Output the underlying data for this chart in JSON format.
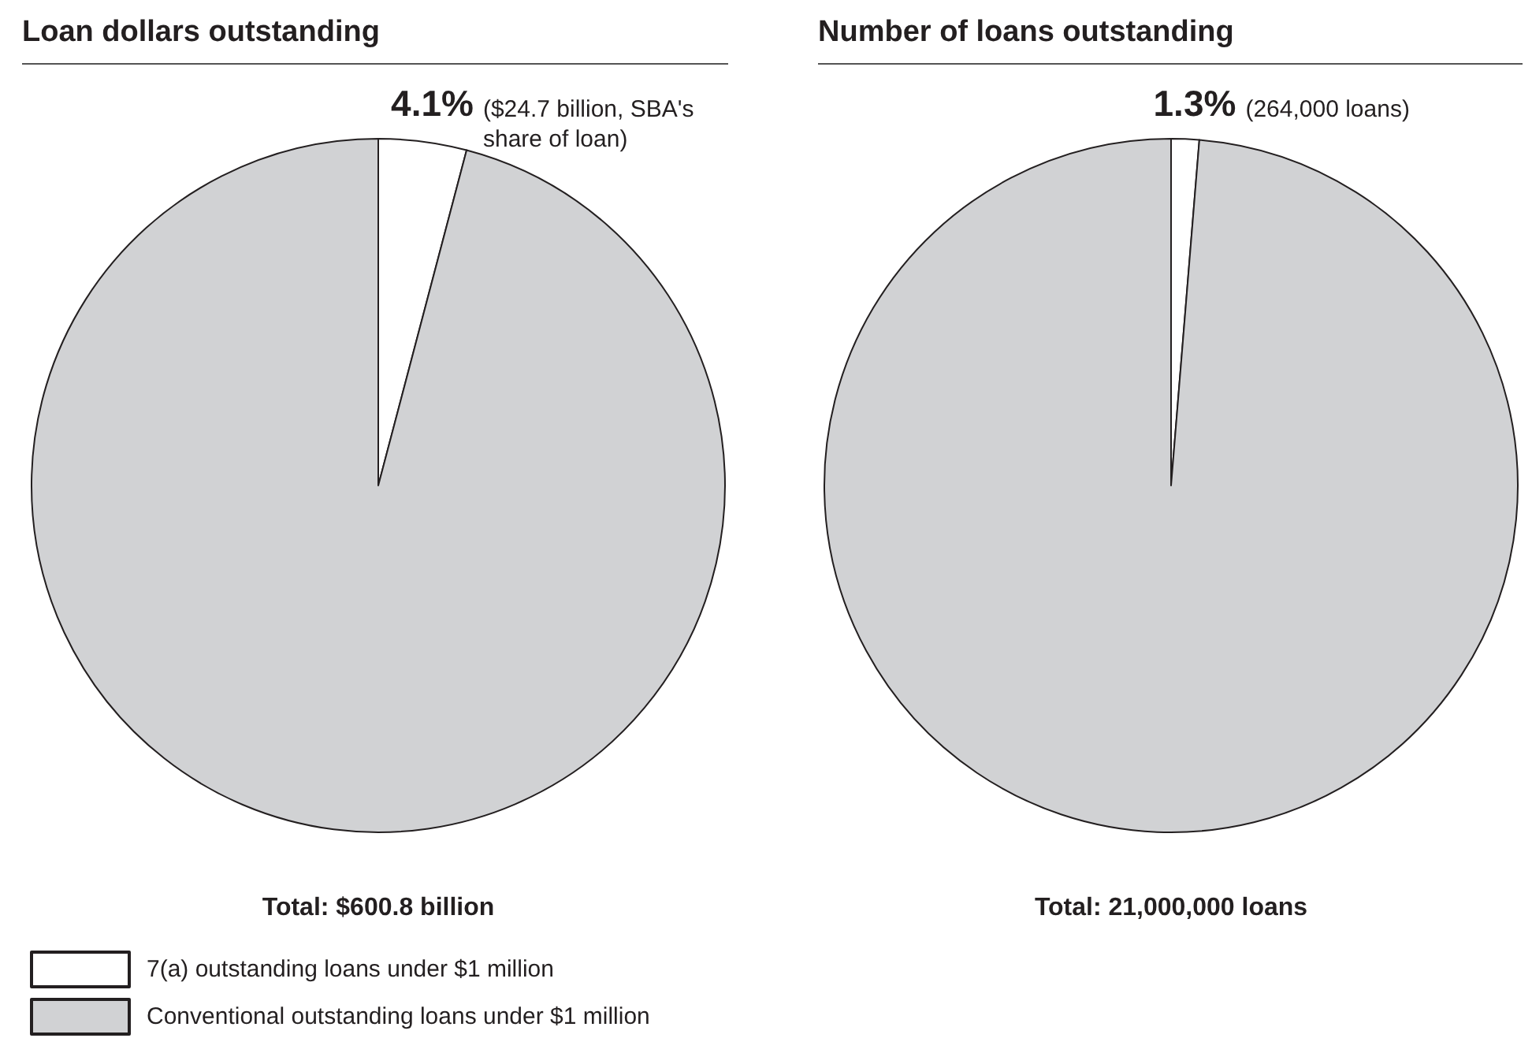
{
  "chart_data": [
    {
      "type": "pie",
      "title": "Loan dollars outstanding",
      "categories": [
        "7(a) outstanding loans under $1 million",
        "Conventional outstanding loans under $1 million"
      ],
      "values": [
        4.1,
        95.9
      ],
      "colors": [
        "#ffffff",
        "#d1d2d4"
      ],
      "value_labels": [
        "4.1%",
        null
      ],
      "annotations": [
        "($24.7 billion, SBA's share of loan)",
        "Total: $600.8 billion"
      ],
      "legend": "bottom"
    },
    {
      "type": "pie",
      "title": "Number of loans outstanding",
      "categories": [
        null,
        null
      ],
      "values": [
        1.3,
        98.7
      ],
      "colors": [
        "#ffffff",
        "#d1d2d4"
      ],
      "value_labels": [
        "1.3%",
        null
      ],
      "annotations": [
        "(264,000 loans)",
        "Total: 21,000,000 loans"
      ]
    }
  ]
}
